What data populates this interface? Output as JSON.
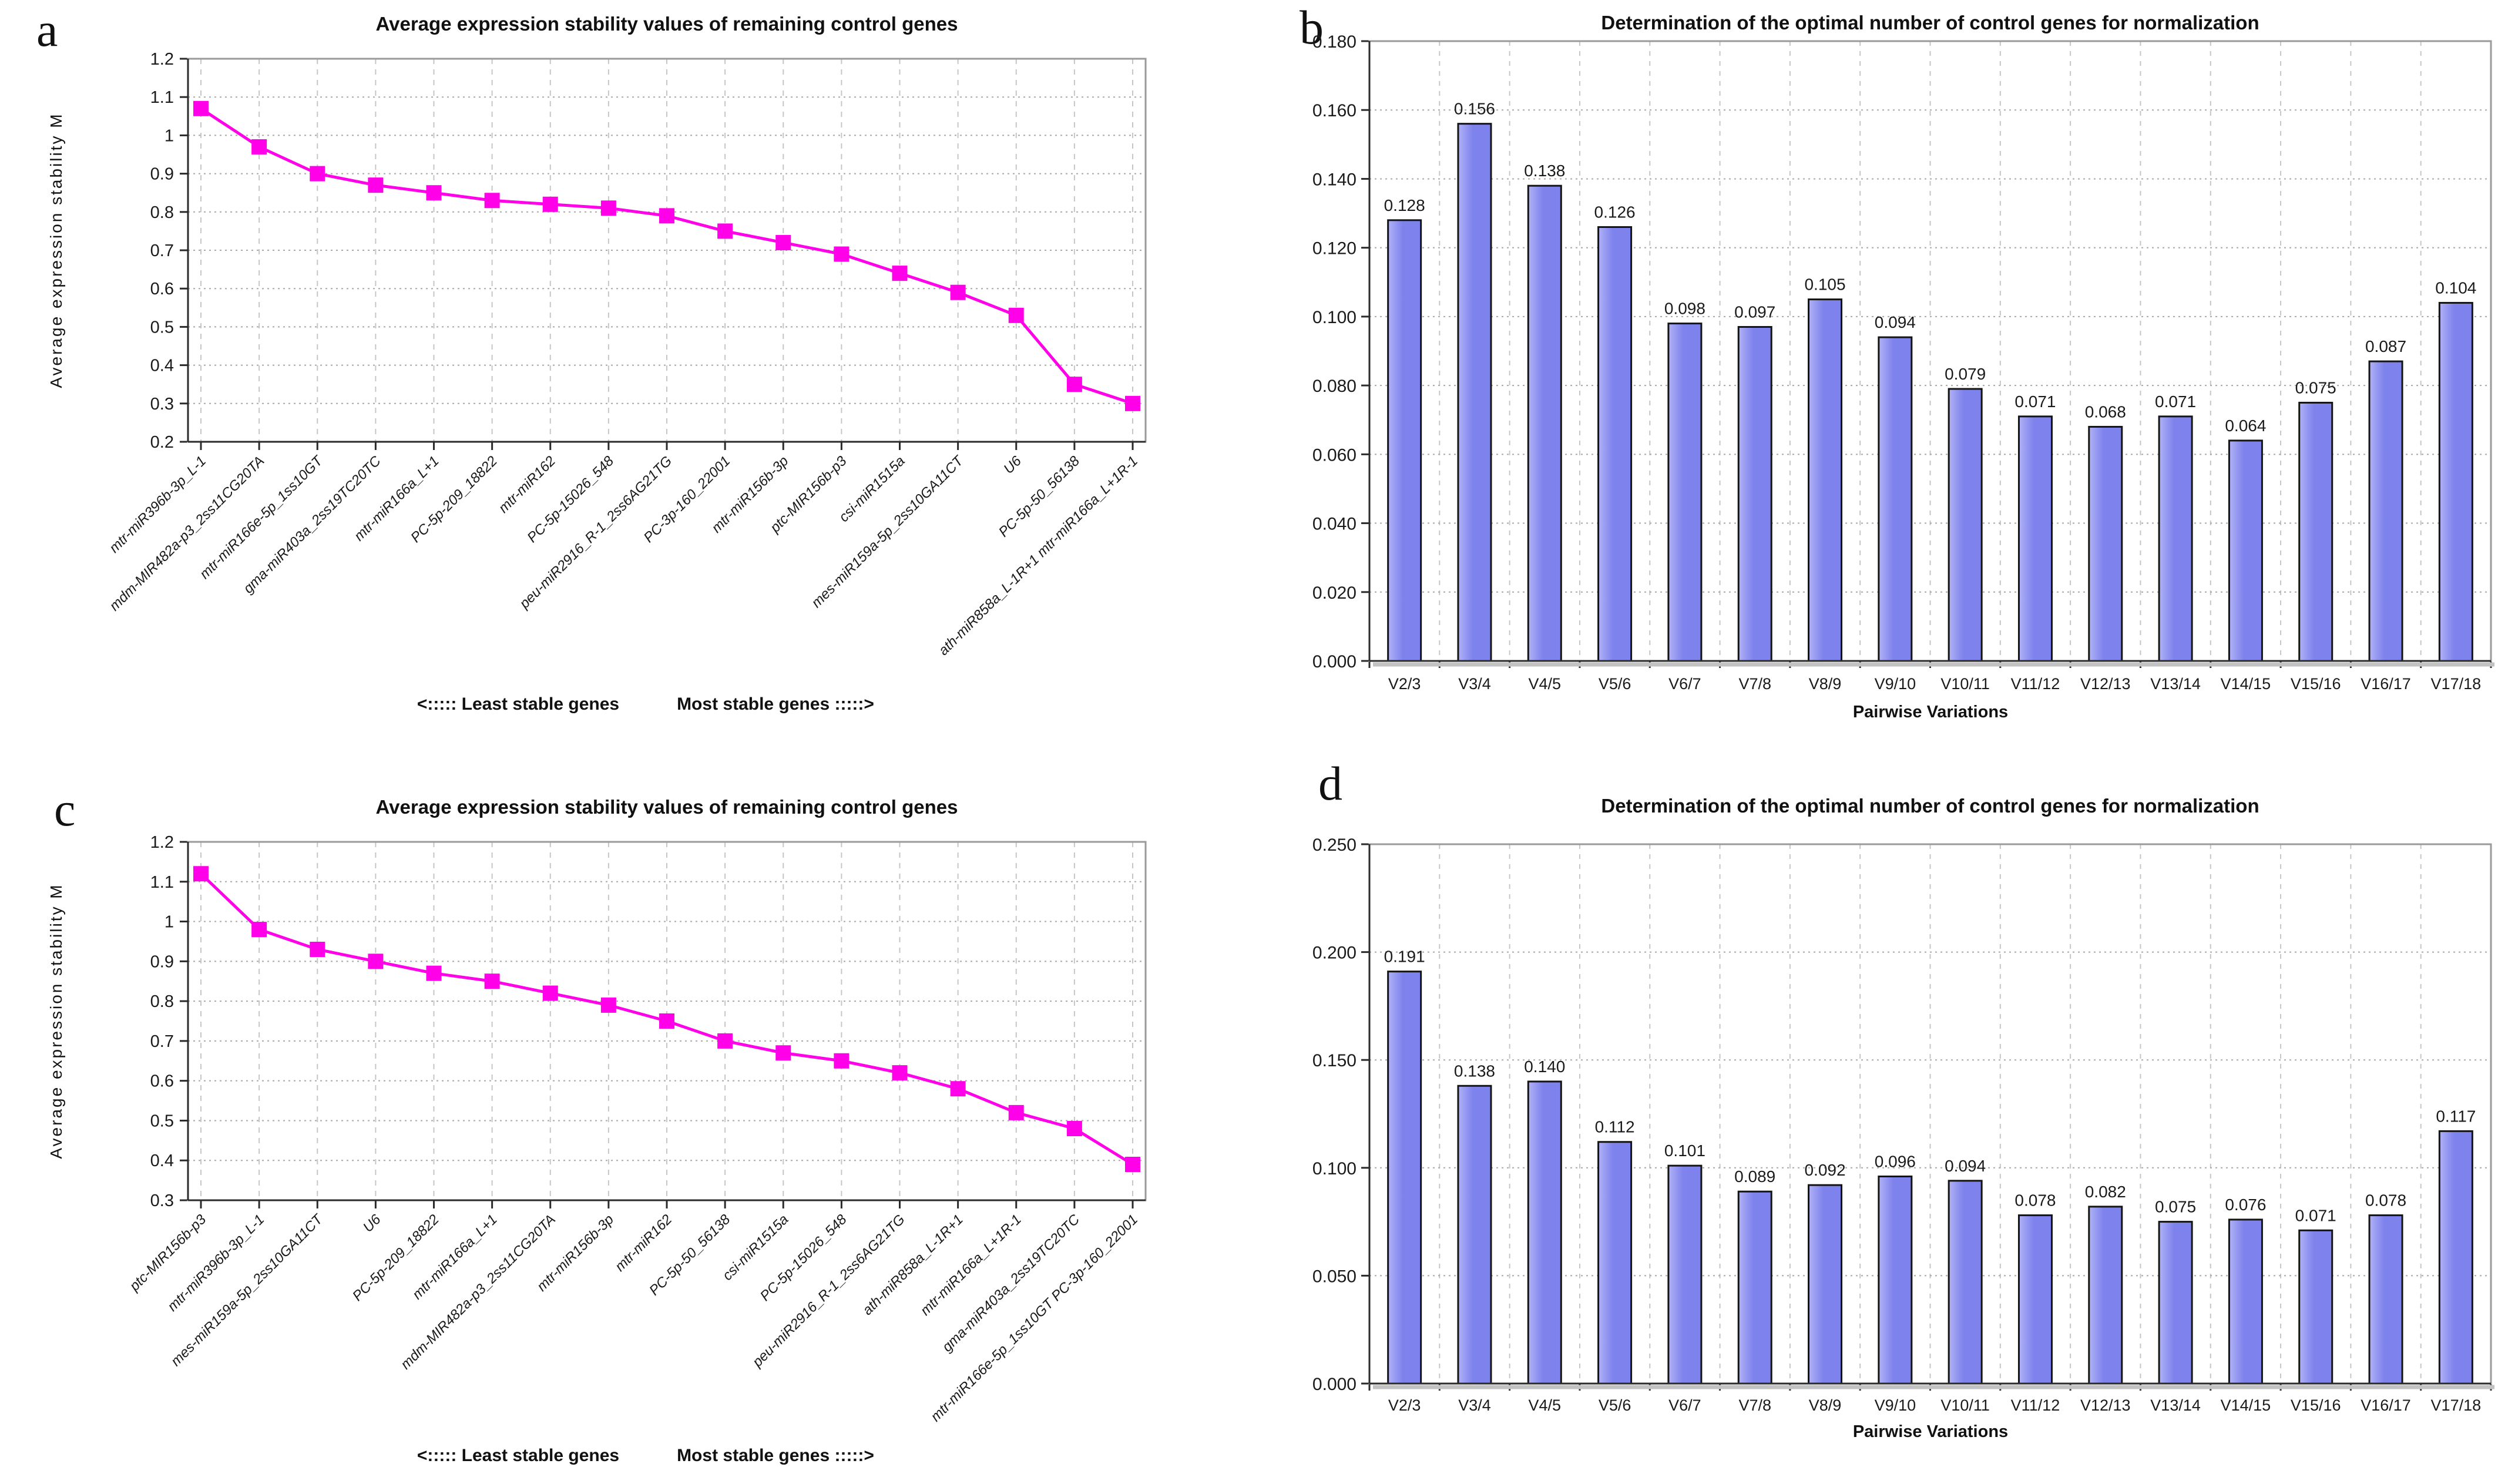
{
  "page": {
    "background": "#ffffff"
  },
  "chart_data": [
    {
      "panel": "a",
      "type": "line",
      "title": "Average expression stability values of remaining control genes",
      "ylabel": "Average expression stability M",
      "xlabel": "",
      "categories": [
        "mtr-miR396b-3p_L-1",
        "mdm-MIR482a-p3_2ss11CG20TA",
        "mtr-miR166e-5p_1ss10GT",
        "gma-miR403a_2ss19TC20TC",
        "mtr-miR166a_L+1",
        "PC-5p-209_18822",
        "mtr-miR162",
        "PC-5p-15026_548",
        "peu-miR2916_R-1_2ss6AG21TG",
        "PC-3p-160_22001",
        "mtr-miR156b-3p",
        "ptc-MIR156b-p3",
        "csi-miR1515a",
        "mes-miR159a-5p_2ss10GA11CT",
        "U6",
        "PC-5p-50_56138",
        "ath-miR858a_L-1R+1 mtr-miR166a_L+1R-1"
      ],
      "values": [
        1.07,
        0.97,
        0.9,
        0.87,
        0.85,
        0.83,
        0.82,
        0.81,
        0.79,
        0.75,
        0.72,
        0.69,
        0.64,
        0.59,
        0.53,
        0.35,
        0.3
      ],
      "ylim": [
        0.2,
        1.2
      ],
      "ytick_step": 0.1,
      "grid": true,
      "legend_position": "none",
      "line_color": "#ff00e8",
      "marker": "square",
      "annotations": [
        "<:::::  Least stable genes",
        "Most stable genes :::::>"
      ]
    },
    {
      "panel": "b",
      "type": "bar",
      "title": "Determination of the optimal number of control genes for normalization",
      "ylabel": "",
      "xlabel": "Pairwise Variations",
      "categories": [
        "V2/3",
        "V3/4",
        "V4/5",
        "V5/6",
        "V6/7",
        "V7/8",
        "V8/9",
        "V9/10",
        "V10/11",
        "V11/12",
        "V12/13",
        "V13/14",
        "V14/15",
        "V15/16",
        "V16/17",
        "V17/18"
      ],
      "values": [
        0.128,
        0.156,
        0.138,
        0.126,
        0.098,
        0.097,
        0.105,
        0.094,
        0.079,
        0.071,
        0.068,
        0.071,
        0.064,
        0.075,
        0.087,
        0.104
      ],
      "ylim": [
        0,
        0.18
      ],
      "ytick_step": 0.02,
      "tick_decimals": 3,
      "label_decimals": 3,
      "grid": true,
      "legend_position": "none",
      "data_labels": true,
      "bar_color": "#7e82ec",
      "bar_color_light": "#b0b2f6",
      "bar_border_color": "#141414"
    },
    {
      "panel": "c",
      "type": "line",
      "title": "Average expression stability values of remaining control genes",
      "ylabel": "Average expression stability M",
      "xlabel": "",
      "categories": [
        "ptc-MIR156b-p3",
        "mtr-miR396b-3p_L-1",
        "mes-miR159a-5p_2ss10GA11CT",
        "U6",
        "PC-5p-209_18822",
        "mtr-miR166a_L+1",
        "mdm-MIR482a-p3_2ss11CG20TA",
        "mtr-miR156b-3p",
        "mtr-miR162",
        "PC-5p-50_56138",
        "csi-miR1515a",
        "PC-5p-15026_548",
        "peu-miR2916_R-1_2ss6AG21TG",
        "ath-miR858a_L-1R+1",
        "mtr-miR166a_L+1R-1",
        "gma-miR403a_2ss19TC20TC",
        "mtr-miR166e-5p_1ss10GT PC-3p-160_22001"
      ],
      "values": [
        1.12,
        0.98,
        0.93,
        0.9,
        0.87,
        0.85,
        0.82,
        0.79,
        0.75,
        0.7,
        0.67,
        0.65,
        0.62,
        0.58,
        0.52,
        0.48,
        0.39
      ],
      "ylim": [
        0.3,
        1.2
      ],
      "ytick_step": 0.1,
      "grid": true,
      "legend_position": "none",
      "line_color": "#ff00e8",
      "marker": "square",
      "annotations": [
        "<:::::  Least stable genes",
        "Most stable genes :::::>"
      ]
    },
    {
      "panel": "d",
      "type": "bar",
      "title": "Determination of the optimal number of control genes for normalization",
      "ylabel": "",
      "xlabel": "Pairwise Variations",
      "categories": [
        "V2/3",
        "V3/4",
        "V4/5",
        "V5/6",
        "V6/7",
        "V7/8",
        "V8/9",
        "V9/10",
        "V10/11",
        "V11/12",
        "V12/13",
        "V13/14",
        "V14/15",
        "V15/16",
        "V16/17",
        "V17/18"
      ],
      "values": [
        0.191,
        0.138,
        0.14,
        0.112,
        0.101,
        0.089,
        0.092,
        0.096,
        0.094,
        0.078,
        0.082,
        0.075,
        0.076,
        0.071,
        0.078,
        0.117
      ],
      "ylim": [
        0,
        0.25
      ],
      "ytick_step": 0.05,
      "tick_decimals": 3,
      "label_decimals": 3,
      "grid": true,
      "legend_position": "none",
      "data_labels": true,
      "bar_color": "#7e82ec",
      "bar_color_light": "#b0b2f6",
      "bar_border_color": "#141414"
    }
  ]
}
